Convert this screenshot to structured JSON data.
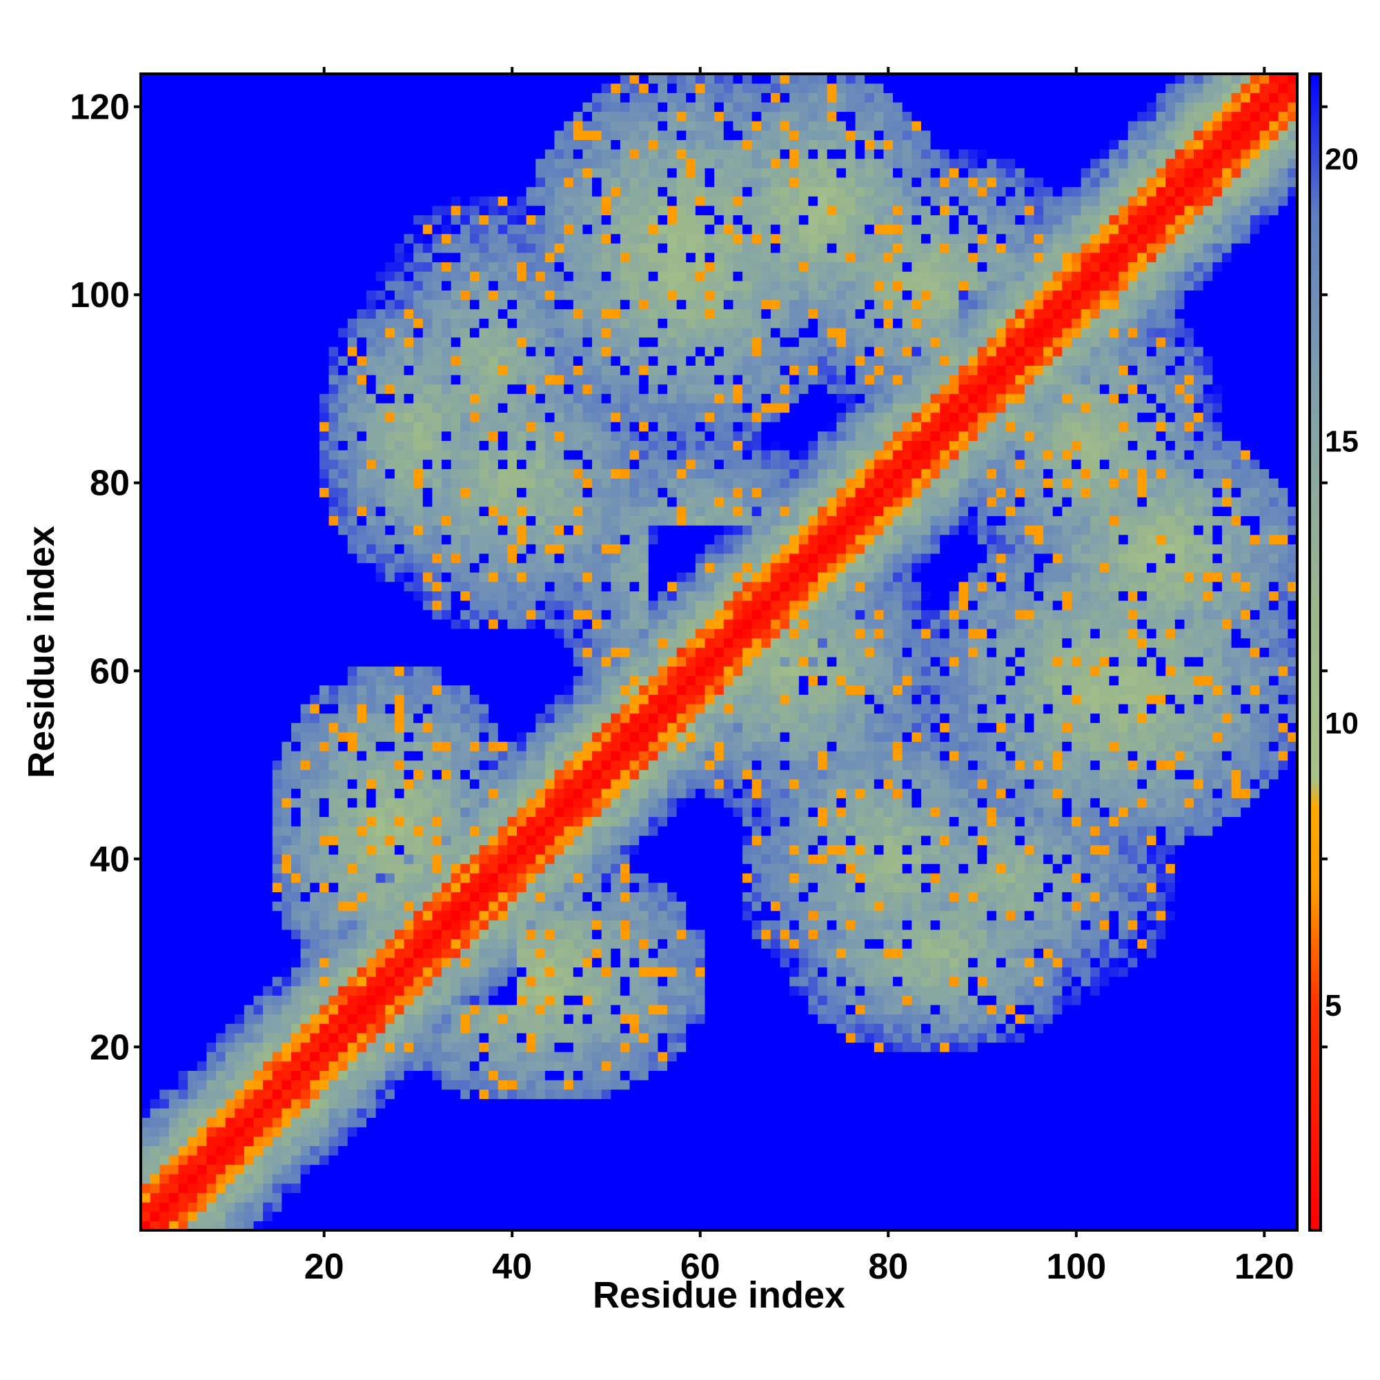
{
  "chart_data": {
    "type": "heatmap",
    "title": "",
    "xlabel": "Residue index",
    "ylabel": "Residue index",
    "n_residues": 123,
    "xlim": [
      1,
      123
    ],
    "ylim": [
      1,
      123
    ],
    "x_ticks": [
      20,
      40,
      60,
      80,
      100,
      120
    ],
    "y_ticks": [
      20,
      40,
      60,
      80,
      100,
      120
    ],
    "colorbar": {
      "range": [
        1,
        21.5
      ],
      "ticks": [
        5,
        10,
        15,
        20
      ],
      "colors": [
        {
          "value": 1,
          "color": "#ff0000"
        },
        {
          "value": 5,
          "color": "#ff3300"
        },
        {
          "value": 7,
          "color": "#ff9900"
        },
        {
          "value": 8.5,
          "color": "#ffaa00"
        },
        {
          "value": 9,
          "color": "#a8c38a"
        },
        {
          "value": 12,
          "color": "#9bb88c"
        },
        {
          "value": 16,
          "color": "#7f9fae"
        },
        {
          "value": 19,
          "color": "#5f7fc0"
        },
        {
          "value": 21.5,
          "color": "#0000ff"
        }
      ]
    },
    "matrix_description": "Symmetric residue-residue distance map; near-diagonal values small (red), off-diagonal contact regions intermediate (grey-green/orange), remaining pairs saturated at maximum (blue).",
    "contact_regions": [
      {
        "i": [
          15,
          40
        ],
        "j": [
          25,
          60
        ],
        "peak": 9
      },
      {
        "i": [
          65,
          95
        ],
        "j": [
          25,
          55
        ],
        "peak": 10
      },
      {
        "i": [
          55,
          85
        ],
        "j": [
          45,
          75
        ],
        "peak": 10
      },
      {
        "i": [
          95,
          123
        ],
        "j": [
          60,
          85
        ],
        "peak": 9
      },
      {
        "i": [
          88,
          115
        ],
        "j": [
          68,
          100
        ],
        "peak": 10
      },
      {
        "i": [
          20,
          40
        ],
        "j": [
          70,
          100
        ],
        "peak": 10
      },
      {
        "i": [
          42,
          75
        ],
        "j": [
          85,
          123
        ],
        "peak": 9
      },
      {
        "i": [
          75,
          110
        ],
        "j": [
          25,
          50
        ],
        "peak": 11
      }
    ]
  }
}
